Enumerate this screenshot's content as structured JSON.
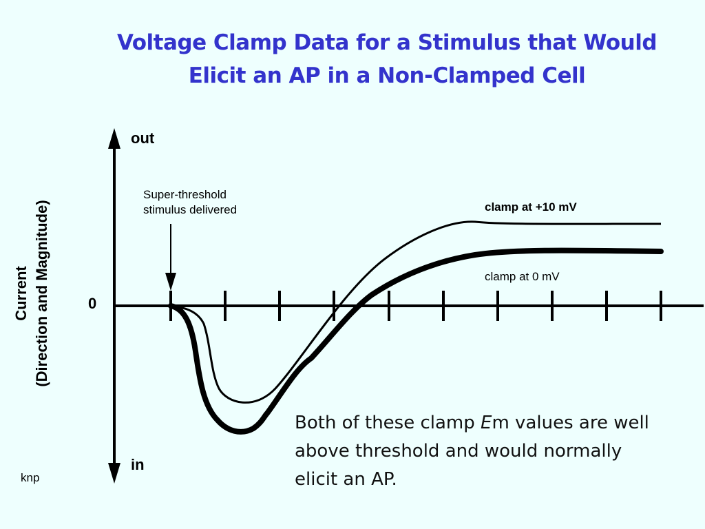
{
  "title": {
    "line1": "Voltage Clamp Data for a Stimulus that Would",
    "line2": "Elicit an AP in a Non-Clamped Cell"
  },
  "y_axis": {
    "label_line1": "Current",
    "label_line2": "(Direction and Magnitude)",
    "top_label": "out",
    "bottom_label": "in",
    "zero_label": "0"
  },
  "stimulus": {
    "line1": "Super-threshold",
    "line2": "stimulus delivered"
  },
  "curves": [
    {
      "name": "clamp at +10 mV",
      "style": "thin"
    },
    {
      "name": "clamp at 0 mV",
      "style": "thick"
    }
  ],
  "note": {
    "prefix": "Both of these clamp ",
    "italic": "E",
    "suffix": "m values are well",
    "line2": "above threshold and would normally",
    "line3": "elicit an AP."
  },
  "author": "knp",
  "colors": {
    "background": "#eefffe",
    "title": "#3333cc",
    "lines": "#000000"
  }
}
